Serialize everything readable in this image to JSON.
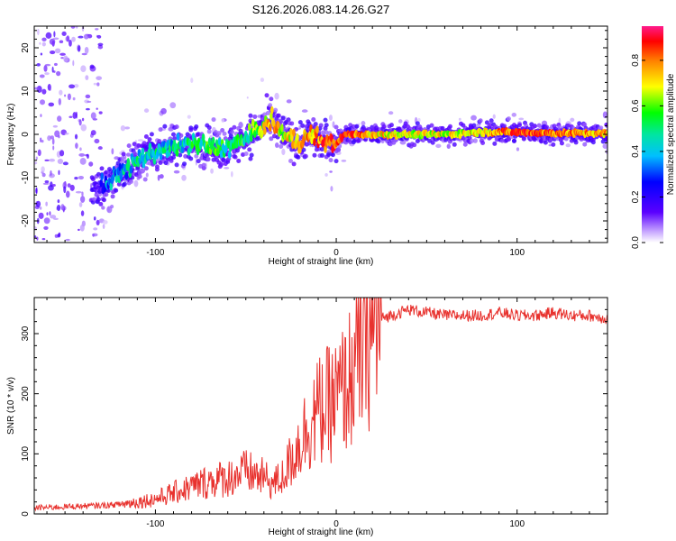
{
  "title": "S126.2026.083.14.26.G27",
  "colors": {
    "snr_line": "#e8322e",
    "frame": "#000000"
  },
  "chart_data": [
    {
      "type": "heatmap",
      "xlabel": "Height of straight line (km)",
      "ylabel": "Frequency (Hz)",
      "xlim": [
        -167,
        150
      ],
      "ylim": [
        -25,
        25
      ],
      "xticks": [
        -100,
        0,
        100
      ],
      "xticklabels": [
        "-100",
        "0",
        "100"
      ],
      "yticks": [
        -20,
        -10,
        0,
        10,
        20
      ],
      "yticklabels": [
        "-20",
        "-10",
        "0",
        "10",
        "20"
      ],
      "colorbar": {
        "label": "Normalized spectral amplitude",
        "range": [
          0,
          0.95
        ],
        "ticks": [
          0.0,
          0.2,
          0.4,
          0.6,
          0.8
        ],
        "ticklabels": [
          "0.0",
          "0.2",
          "0.4",
          "0.6",
          "0.8"
        ]
      },
      "ridge": {
        "x": [
          -128,
          -120,
          -110,
          -100,
          -90,
          -80,
          -70,
          -60,
          -50,
          -40,
          -35,
          -30,
          -25,
          -20,
          -15,
          -10,
          -5,
          0,
          5,
          10,
          20,
          40,
          60,
          80,
          100,
          120,
          150
        ],
        "y": [
          -12,
          -9,
          -6,
          -4,
          -3,
          -2,
          -3,
          -3,
          -1,
          2,
          3,
          0,
          -1,
          -2,
          0,
          -1,
          -2,
          -2,
          0,
          0,
          0,
          0,
          0,
          0.5,
          0.5,
          0.3,
          0.2
        ],
        "amplitude": [
          0.35,
          0.4,
          0.45,
          0.45,
          0.45,
          0.5,
          0.55,
          0.5,
          0.55,
          0.7,
          0.8,
          0.7,
          0.75,
          0.85,
          0.75,
          0.85,
          0.9,
          0.85,
          0.9,
          0.85,
          0.75,
          0.7,
          0.7,
          0.75,
          0.9,
          0.85,
          0.8
        ]
      }
    },
    {
      "type": "line",
      "xlabel": "Height of straight line (km)",
      "ylabel": "SNR (10 * v/v)",
      "xlim": [
        -167,
        150
      ],
      "ylim": [
        0,
        360
      ],
      "xticks": [
        -100,
        0,
        100
      ],
      "xticklabels": [
        "-100",
        "0",
        "100"
      ],
      "yticks": [
        0,
        100,
        200,
        300
      ],
      "yticklabels": [
        "0",
        "100",
        "200",
        "300"
      ],
      "series": [
        {
          "name": "SNR",
          "x": [
            -167,
            -150,
            -130,
            -120,
            -110,
            -100,
            -90,
            -80,
            -70,
            -60,
            -50,
            -40,
            -35,
            -30,
            -25,
            -20,
            -15,
            -10,
            -5,
            0,
            5,
            10,
            15,
            20,
            25,
            30,
            40,
            50,
            60,
            70,
            80,
            90,
            100,
            110,
            120,
            130,
            140,
            150
          ],
          "y": [
            10,
            12,
            14,
            16,
            20,
            25,
            35,
            45,
            55,
            60,
            70,
            60,
            50,
            60,
            90,
            120,
            150,
            170,
            180,
            190,
            210,
            240,
            280,
            310,
            325,
            330,
            340,
            335,
            330,
            330,
            330,
            335,
            330,
            330,
            335,
            330,
            330,
            325
          ]
        }
      ]
    }
  ]
}
